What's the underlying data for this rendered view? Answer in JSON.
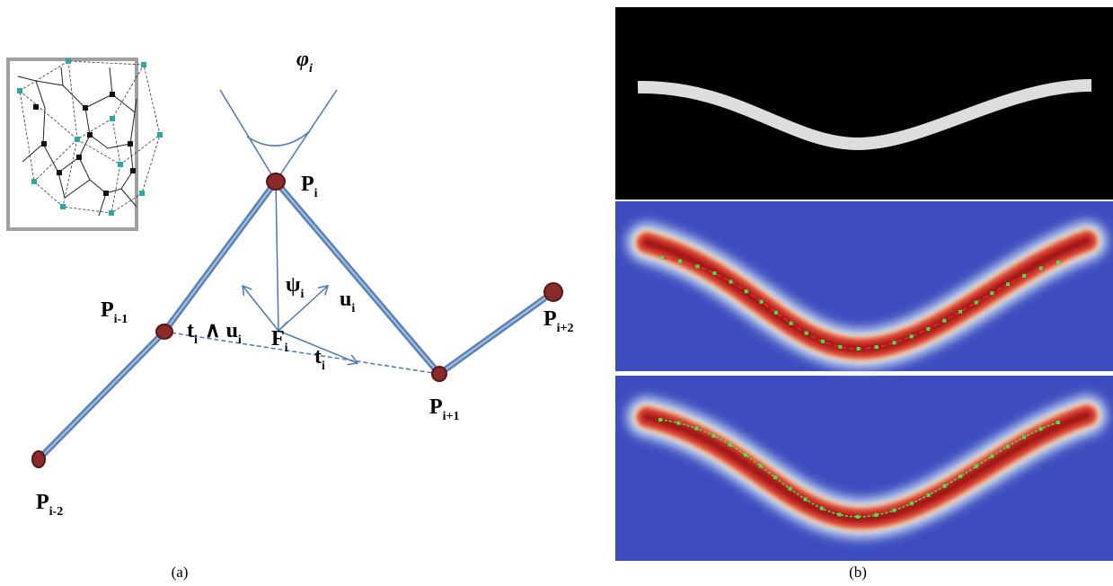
{
  "labels": [
    {
      "main": "φ",
      "sub": "i"
    },
    {
      "main": "P",
      "sub": "i"
    },
    {
      "main": "ψ",
      "sub": "i"
    },
    {
      "main": "u",
      "sub": "i"
    },
    {
      "main": "P",
      "sub": "i-1"
    },
    {
      "main": "t",
      "sub": "i"
    },
    {
      "main": "∧ u",
      "sub": "i"
    },
    {
      "main": "F",
      "sub": "i"
    },
    {
      "main": "t",
      "sub": "i"
    },
    {
      "main": "P",
      "sub": "i+1"
    },
    {
      "main": "P",
      "sub": "i+2"
    },
    {
      "main": "P",
      "sub": "i-2"
    }
  ],
  "captions": {
    "left": "(a)",
    "right": "(b)"
  }
}
